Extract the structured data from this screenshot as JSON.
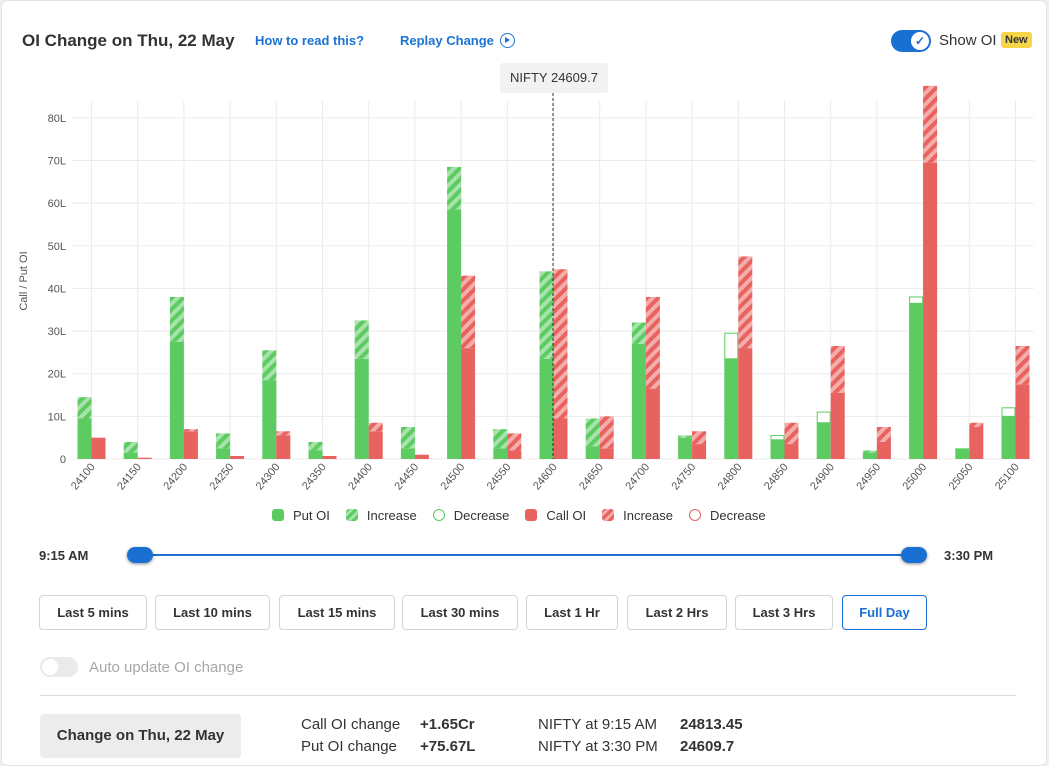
{
  "header": {
    "title": "OI Change on Thu, 22 May",
    "how_to_read": "How to read this?",
    "replay_change": "Replay Change",
    "show_oi_label": "Show OI",
    "new_badge": "New",
    "show_oi_enabled": true
  },
  "tooltip": {
    "text": "NIFTY 24609.7"
  },
  "colors": {
    "put": "#5ccb62",
    "put_light": "#a9e3ac",
    "call": "#e8625f",
    "call_light": "#f3adab",
    "accent": "#1a6fd2"
  },
  "chart_data": {
    "type": "bar",
    "ylabel": "Call / Put OI",
    "xlabel": "",
    "ylim": [
      0,
      87
    ],
    "yticks": [
      "0",
      "10L",
      "20L",
      "30L",
      "40L",
      "50L",
      "60L",
      "70L",
      "80L"
    ],
    "ytick_values": [
      0,
      10,
      20,
      30,
      40,
      50,
      60,
      70,
      80
    ],
    "unit": "L",
    "spot_marker": {
      "label": "NIFTY 24609.7",
      "value": 24609.7
    },
    "categories": [
      "24100",
      "24150",
      "24200",
      "24250",
      "24300",
      "24350",
      "24400",
      "24450",
      "24500",
      "24550",
      "24600",
      "24650",
      "24700",
      "24750",
      "24800",
      "24850",
      "24900",
      "24950",
      "25000",
      "25050",
      "25100"
    ],
    "series": [
      {
        "name": "Put OI",
        "change_name_increase": "Increase",
        "change_name_decrease": "Decrease",
        "base": [
          9.5,
          1.5,
          27.5,
          2.5,
          18.5,
          2.0,
          23.5,
          2.5,
          58.5,
          2.5,
          23.5,
          3.0,
          27.0,
          5.0,
          23.5,
          4.5,
          8.5,
          1.5,
          36.5,
          2.5,
          10.0
        ],
        "increase": [
          5.0,
          2.5,
          10.5,
          3.5,
          7.0,
          2.0,
          9.0,
          5.0,
          10.0,
          4.5,
          20.5,
          6.5,
          5.0,
          0.5,
          0,
          0,
          0,
          0.5,
          0,
          0,
          0
        ],
        "decrease": [
          0,
          0,
          0,
          0,
          0,
          0,
          0,
          0,
          0,
          0,
          0,
          0,
          0,
          0,
          6.0,
          1.0,
          2.5,
          0,
          1.5,
          0,
          2.0
        ]
      },
      {
        "name": "Call OI",
        "change_name_increase": "Increase",
        "change_name_decrease": "Decrease",
        "base": [
          5.0,
          0.3,
          6.5,
          0.7,
          5.5,
          0.7,
          6.5,
          1.0,
          26.0,
          2.0,
          9.5,
          2.5,
          16.5,
          3.5,
          26.0,
          3.5,
          15.5,
          4.0,
          69.5,
          7.5,
          17.5
        ],
        "increase": [
          0,
          0,
          0.5,
          0,
          1.0,
          0,
          2.0,
          0,
          17.0,
          4.0,
          35.0,
          7.5,
          21.5,
          3.0,
          21.5,
          5.0,
          11.0,
          3.5,
          18.0,
          1.0,
          9.0
        ],
        "decrease": [
          0,
          0,
          0,
          0,
          0,
          0,
          0,
          0,
          0,
          0,
          0,
          0,
          0,
          0,
          0,
          0,
          0,
          0,
          0,
          0,
          0
        ]
      }
    ],
    "legend": [
      "Put OI",
      "Increase",
      "Decrease",
      "Call OI",
      "Increase",
      "Decrease"
    ],
    "legend_placement": "bottom",
    "grid": true
  },
  "slider": {
    "start_label": "9:15 AM",
    "end_label": "3:30 PM"
  },
  "range_buttons": [
    {
      "label": "Last 5 mins",
      "active": false
    },
    {
      "label": "Last 10 mins",
      "active": false
    },
    {
      "label": "Last 15 mins",
      "active": false
    },
    {
      "label": "Last 30 mins",
      "active": false
    },
    {
      "label": "Last 1 Hr",
      "active": false
    },
    {
      "label": "Last 2 Hrs",
      "active": false
    },
    {
      "label": "Last 3 Hrs",
      "active": false
    },
    {
      "label": "Full Day",
      "active": true
    }
  ],
  "auto_update": {
    "label": "Auto update OI change",
    "enabled": false
  },
  "summary": {
    "change_button": "Change on Thu, 22 May",
    "call_oi_label": "Call OI change",
    "call_oi_value": "+1.65Cr",
    "put_oi_label": "Put OI change",
    "put_oi_value": "+75.67L",
    "nifty_open_label": "NIFTY at 9:15 AM",
    "nifty_open_value": "24813.45",
    "nifty_close_label": "NIFTY at 3:30 PM",
    "nifty_close_value": "24609.7"
  }
}
